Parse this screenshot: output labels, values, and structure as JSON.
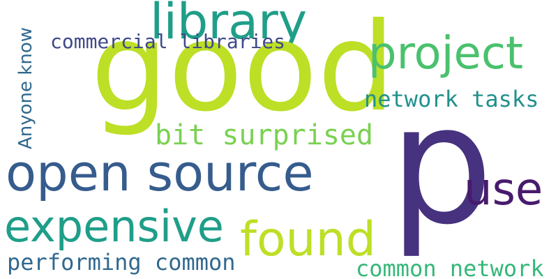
{
  "wordcloud": {
    "words": {
      "good": {
        "text": "good",
        "color": "#bddf26"
      },
      "p": {
        "text": "p",
        "color": "#46327e"
      },
      "open_source": {
        "text": "open source",
        "color": "#365c8d"
      },
      "library": {
        "text": "library",
        "color": "#1f9e89"
      },
      "project": {
        "text": "project",
        "color": "#4ac16d"
      },
      "expensive": {
        "text": "expensive",
        "color": "#1f9e89"
      },
      "found": {
        "text": "found",
        "color": "#bddf26"
      },
      "use": {
        "text": "use",
        "color": "#481b6d"
      },
      "bit_surprised": {
        "text": "bit surprised",
        "color": "#7ad151"
      },
      "network_tasks": {
        "text": "network tasks",
        "color": "#21918c"
      },
      "commercial_libraries": {
        "text": "commercial libraries",
        "color": "#3e4989"
      },
      "anyone_know": {
        "text": "Anyone know",
        "color": "#31688e"
      },
      "performing_common": {
        "text": "performing common",
        "color": "#31688e"
      },
      "common_network": {
        "text": "common network",
        "color": "#35b779"
      }
    }
  }
}
